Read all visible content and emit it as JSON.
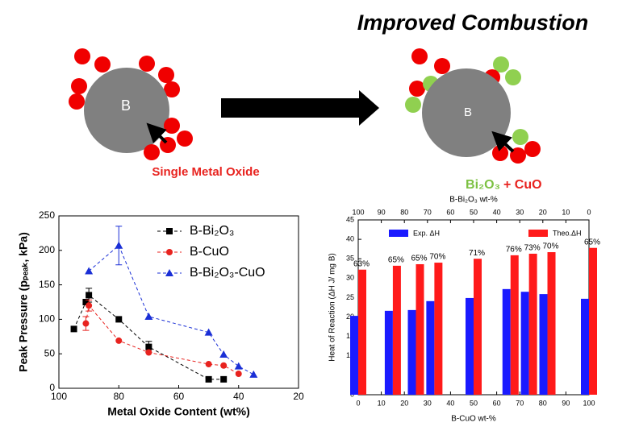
{
  "diagram": {
    "title": "Improved Combustion",
    "left_core": "B",
    "left_label": "Single Metal Oxide",
    "right_core": "B",
    "right_label_oxide": "Bi₂O₃",
    "right_label_plus": "+ CuO"
  },
  "chart_data": [
    {
      "type": "line",
      "xlabel": "Metal Oxide Content (wt%)",
      "ylabel": "Peak Pressure (pₚₑₐₖ, kPa)",
      "xlim": [
        100,
        20
      ],
      "xticks": [
        100,
        80,
        60,
        40,
        20
      ],
      "ylim": [
        0,
        250
      ],
      "yticks": [
        0,
        50,
        100,
        150,
        200,
        250
      ],
      "line_style": "dashed",
      "legend": "upper right",
      "series": [
        {
          "name": "B-Bi₂O₃",
          "color": "#000000",
          "marker": "square",
          "x": [
            95,
            91,
            90,
            80,
            70,
            50,
            45
          ],
          "values": [
            86,
            125,
            135,
            100,
            60,
            13,
            13
          ],
          "errors": [
            null,
            null,
            10,
            null,
            8,
            null,
            null
          ]
        },
        {
          "name": "B-CuO",
          "color": "#e8231f",
          "marker": "circle",
          "x": [
            91,
            90,
            80,
            70,
            50,
            45,
            40
          ],
          "values": [
            94,
            120,
            69,
            52,
            35,
            33,
            21
          ],
          "errors": [
            10,
            8,
            null,
            null,
            null,
            null,
            null
          ]
        },
        {
          "name": "B-Bi₂O₃-CuO",
          "color": "#1a2fd6",
          "marker": "triangle",
          "x": [
            90,
            80,
            70,
            50,
            45,
            40,
            35
          ],
          "values": [
            170,
            207,
            104,
            81,
            49,
            32,
            20
          ],
          "errors": [
            null,
            28,
            null,
            null,
            null,
            null,
            null
          ]
        }
      ]
    },
    {
      "type": "bar",
      "xlabel": "B-CuO wt-%",
      "x2label": "B-Bi₂O₃ wt-%",
      "ylabel": "Heat of Reaction (ΔH J/ mg B)",
      "xlim": [
        0,
        100
      ],
      "xticks": [
        0,
        10,
        20,
        30,
        40,
        50,
        60,
        70,
        80,
        90,
        100
      ],
      "x2lim": [
        100,
        0
      ],
      "x2ticks": [
        100,
        90,
        80,
        70,
        60,
        50,
        40,
        30,
        20,
        10,
        0
      ],
      "ylim": [
        0,
        45
      ],
      "yticks": [
        0,
        5,
        10,
        15,
        20,
        25,
        30,
        35,
        40,
        45
      ],
      "legend": "top",
      "x": [
        0,
        15,
        25,
        33,
        50,
        66,
        74,
        82,
        100
      ],
      "series": [
        {
          "name": "Exp. ΔH",
          "color": "#1a1aff",
          "values": [
            20.3,
            21.6,
            21.8,
            24.1,
            24.9,
            27.2,
            26.5,
            25.9,
            24.7
          ]
        },
        {
          "name": "Theo.ΔH",
          "color": "#ff1a1a",
          "values": [
            32.2,
            33.2,
            33.6,
            34.0,
            35.0,
            35.9,
            36.3,
            36.7,
            37.8
          ]
        }
      ],
      "efficiency": {
        "values": [
          63,
          65,
          65,
          70,
          71,
          76,
          73,
          70,
          65
        ],
        "value_labels": [
          "63%",
          "65%",
          "65%",
          "70%",
          "71%",
          "76%",
          "73%",
          "70%",
          "65%"
        ]
      }
    }
  ]
}
